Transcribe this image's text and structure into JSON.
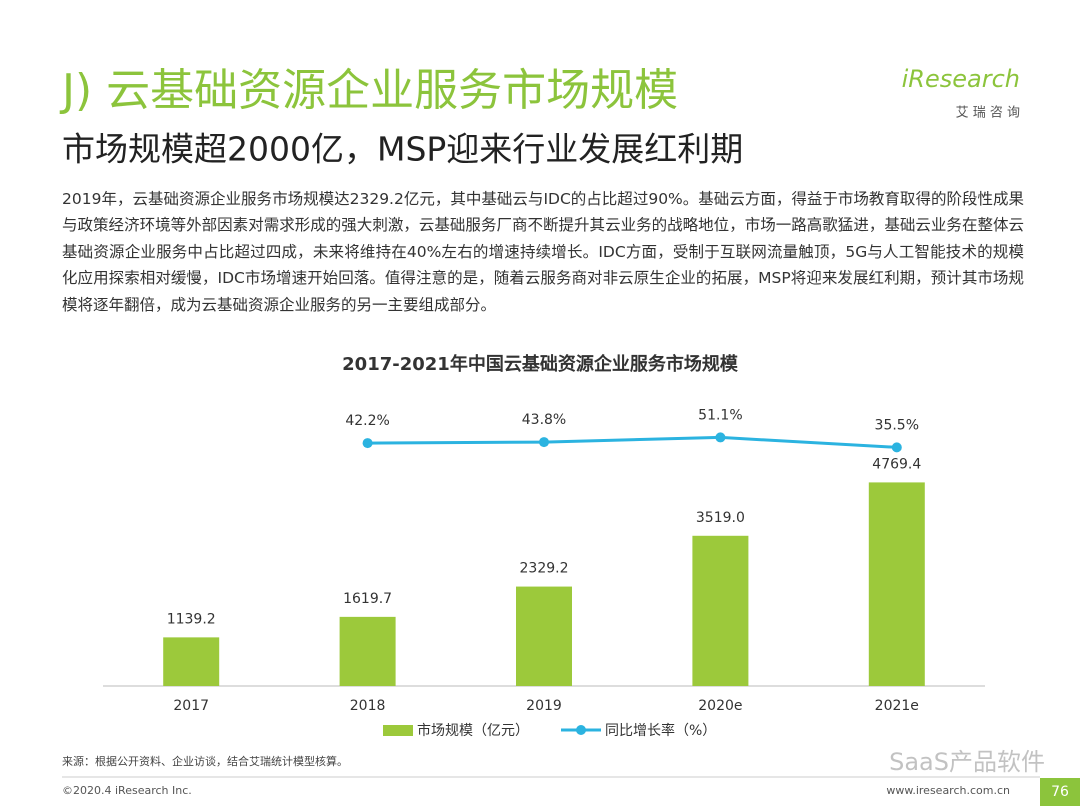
{
  "header": {
    "title": "J) 云基础资源企业服务市场规模",
    "subtitle": "市场规模超2000亿，MSP迎来行业发展红利期",
    "logo": "iResearch",
    "logo_sub": "艾 瑞 咨 询"
  },
  "body": "2019年，云基础资源企业服务市场规模达2329.2亿元，其中基础云与IDC的占比超过90%。基础云方面，得益于市场教育取得的阶段性成果与政策经济环境等外部因素对需求形成的强大刺激，云基础服务厂商不断提升其云业务的战略地位，市场一路高歌猛进，基础云业务在整体云基础资源企业服务中占比超过四成，未来将维持在40%左右的增速持续增长。IDC方面，受制于互联网流量触顶，5G与人工智能技术的规模化应用探索相对缓慢，IDC市场增速开始回落。值得注意的是，随着云服务商对非云原生企业的拓展，MSP将迎来发展红利期，预计其市场规模将逐年翻倍，成为云基础资源企业服务的另一主要组成部分。",
  "chart_data": {
    "type": "bar",
    "title": "2017-2021年中国云基础资源企业服务市场规模",
    "categories": [
      "2017",
      "2018",
      "2019",
      "2020e",
      "2021e"
    ],
    "series": [
      {
        "name": "市场规模（亿元）",
        "type": "bar",
        "color": "#9cc93b",
        "values": [
          1139.2,
          1619.7,
          2329.2,
          3519.0,
          4769.4
        ],
        "value_labels": [
          "1139.2",
          "1619.7",
          "2329.2",
          "3519.0",
          "4769.4"
        ]
      },
      {
        "name": "同比增长率（%）",
        "type": "line",
        "axis": "y2",
        "color": "#2bb3e0",
        "values": [
          null,
          42.2,
          43.8,
          51.1,
          35.5
        ],
        "value_labels": [
          null,
          "42.2%",
          "43.8%",
          "51.1%",
          "35.5%"
        ]
      }
    ],
    "ylim": [
      0,
      6700
    ],
    "y2lim": [
      -340,
      110
    ]
  },
  "footer": {
    "source": "来源：根据公开资料、企业访谈，结合艾瑞统计模型核算。",
    "copyright": "©2020.4 iResearch Inc.",
    "url": "www.iresearch.com.cn",
    "page": "76",
    "watermark": "SaaS产品软件"
  }
}
